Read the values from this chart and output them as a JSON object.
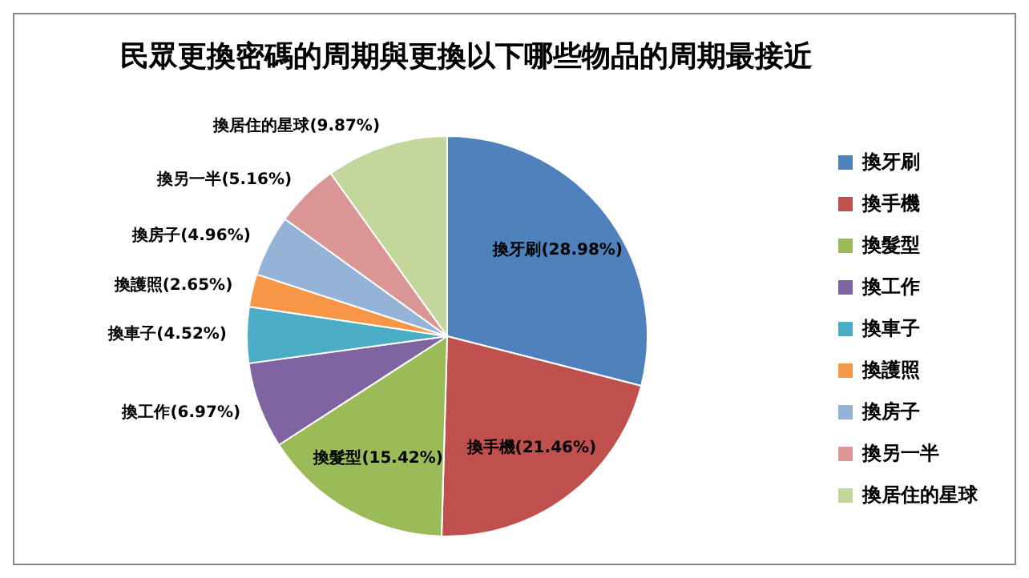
{
  "chart_data": {
    "type": "pie",
    "title": "民眾更換密碼的周期與更換以下哪些物品的周期最接近",
    "categories": [
      "換牙刷",
      "換手機",
      "換髮型",
      "換工作",
      "換車子",
      "換護照",
      "換房子",
      "換另一半",
      "換居住的星球"
    ],
    "values": [
      28.98,
      21.46,
      15.42,
      6.97,
      4.52,
      2.65,
      4.96,
      5.16,
      9.87
    ],
    "colors": [
      "#4f81bd",
      "#c0504d",
      "#9bbb59",
      "#8064a2",
      "#4bacc6",
      "#f79646",
      "#95b3d7",
      "#d99694",
      "#c3d69b"
    ],
    "value_labels": [
      "換牙刷(28.98%)",
      "換手機(21.46%)",
      "換髮型(15.42%)",
      "換工作(6.97%)",
      "換車子(4.52%)",
      "換護照(2.65%)",
      "換房子(4.96%)",
      "換另一半(5.16%)",
      "換居住的星球(9.87%)"
    ],
    "legend": "right"
  }
}
